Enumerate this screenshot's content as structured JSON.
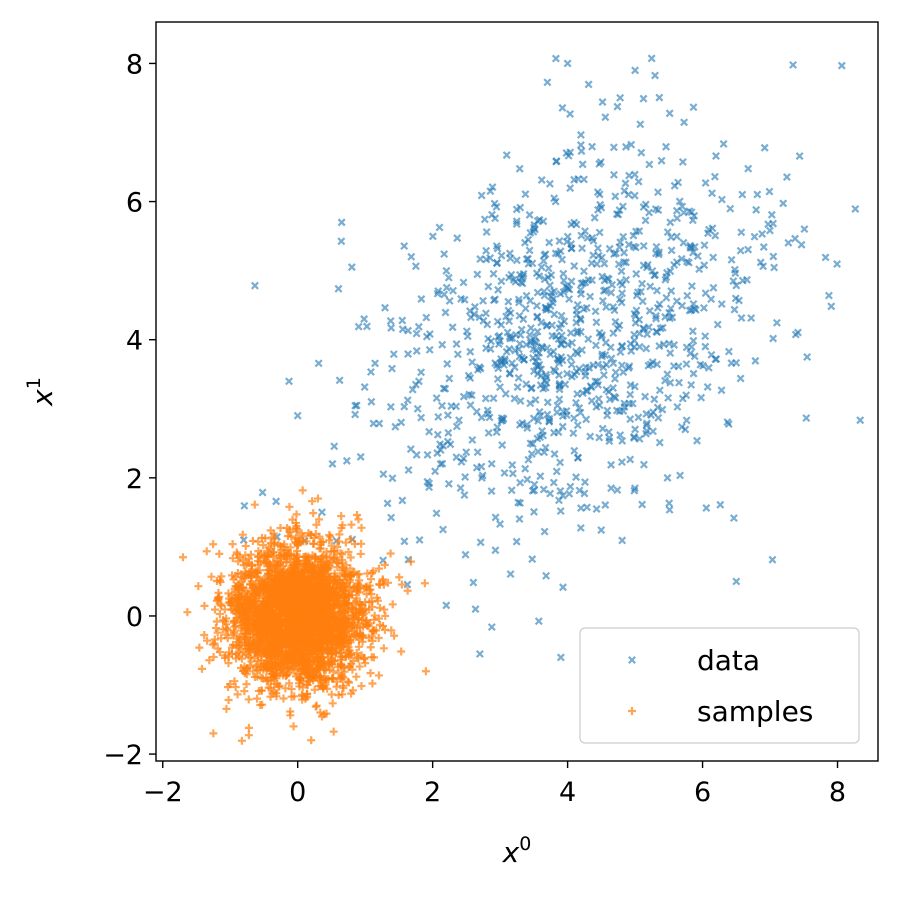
{
  "chart_data": {
    "type": "scatter",
    "title": "",
    "xlabel": "x",
    "xlabel_sup": "0",
    "ylabel": "x",
    "ylabel_sup": "1",
    "xlim": [
      -2.1,
      8.6
    ],
    "ylim": [
      -2.1,
      8.6
    ],
    "xticks": [
      -2,
      0,
      2,
      4,
      6,
      8
    ],
    "yticks": [
      -2,
      0,
      2,
      4,
      6,
      8
    ],
    "xtick_labels": [
      "−2",
      "0",
      "2",
      "4",
      "6",
      "8"
    ],
    "ytick_labels": [
      "−2",
      "0",
      "2",
      "4",
      "6",
      "8"
    ],
    "grid": false,
    "legend_position": "lower-right",
    "series": [
      {
        "name": "data",
        "marker": "x",
        "color": "#1f77b4",
        "opacity": 0.6,
        "n_points": 1000,
        "distribution": {
          "mean": [
            4.0,
            4.0
          ],
          "std": [
            1.5,
            1.5
          ],
          "correlation": 0.35,
          "seed": 12345
        },
        "example_points": [
          [
            7.55,
            3.75
          ],
          [
            6.5,
            0.5
          ],
          [
            3.9,
            -0.6
          ],
          [
            2.7,
            -0.55
          ],
          [
            0.0,
            2.9
          ],
          [
            -0.8,
            1.1
          ],
          [
            4.0,
            8.0
          ],
          [
            5.0,
            7.9
          ]
        ]
      },
      {
        "name": "samples",
        "marker": "+",
        "color": "#ff7f0e",
        "opacity": 0.7,
        "n_points": 3000,
        "distribution": {
          "mean": [
            0.0,
            0.0
          ],
          "std": [
            0.5,
            0.5
          ],
          "correlation": 0.0,
          "seed": 67890
        },
        "example_points": [
          [
            -1.7,
            0.85
          ],
          [
            1.9,
            -0.8
          ],
          [
            0.2,
            -1.8
          ],
          [
            -1.25,
            -1.7
          ],
          [
            0.3,
            1.7
          ]
        ]
      }
    ]
  }
}
